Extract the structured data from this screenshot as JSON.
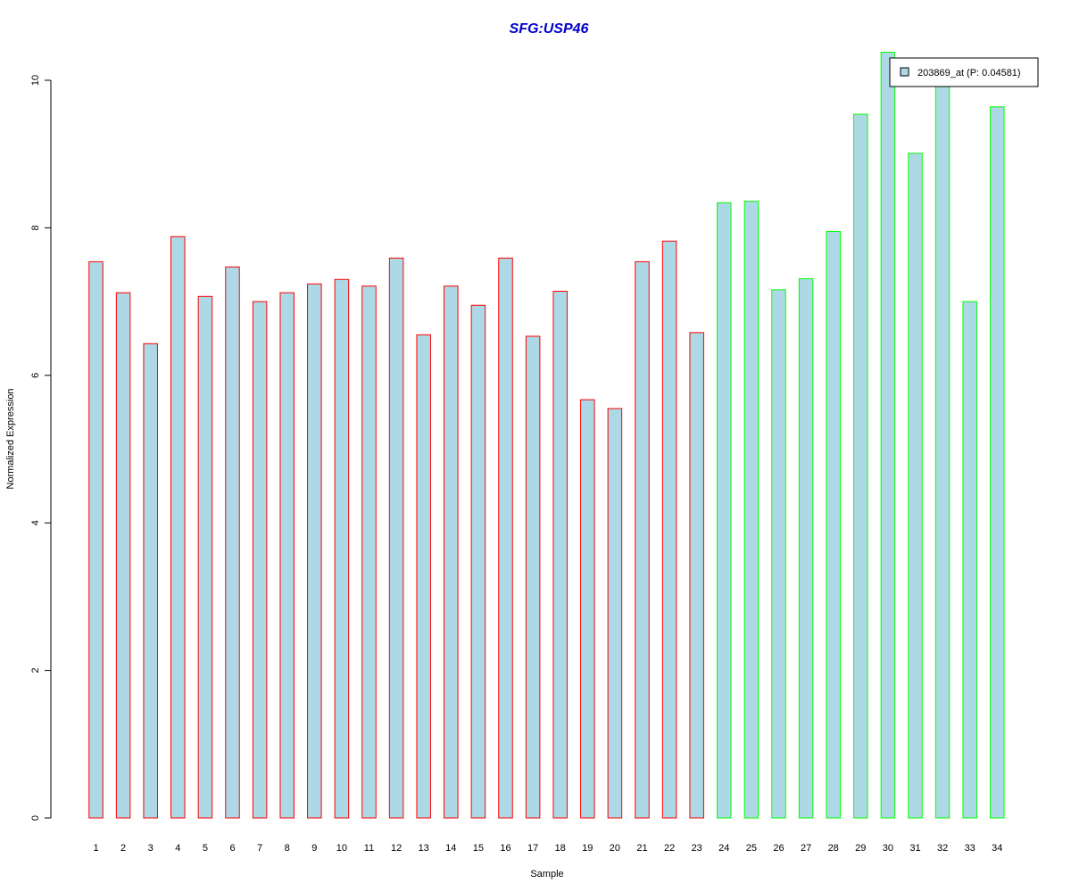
{
  "chart_data": {
    "type": "bar",
    "title": "SFG:USP46",
    "xlabel": "Sample",
    "ylabel": "Normalized Expression",
    "ylim": [
      0,
      10.5
    ],
    "yticks": [
      0,
      2,
      4,
      6,
      8,
      10
    ],
    "categories": [
      "1",
      "2",
      "3",
      "4",
      "5",
      "6",
      "7",
      "8",
      "9",
      "10",
      "11",
      "12",
      "13",
      "14",
      "15",
      "16",
      "17",
      "18",
      "19",
      "20",
      "21",
      "22",
      "23",
      "24",
      "25",
      "26",
      "27",
      "28",
      "29",
      "30",
      "31",
      "32",
      "33",
      "34"
    ],
    "values": [
      7.54,
      7.12,
      6.43,
      7.88,
      7.07,
      7.47,
      7.0,
      7.12,
      7.24,
      7.3,
      7.21,
      7.59,
      6.55,
      7.21,
      6.95,
      7.59,
      6.53,
      7.14,
      5.67,
      5.55,
      7.54,
      7.82,
      6.58,
      8.34,
      8.36,
      7.16,
      7.31,
      7.95,
      9.54,
      10.38,
      9.01,
      9.99,
      7.0,
      9.64
    ],
    "groups": [
      "red",
      "red",
      "red",
      "red",
      "red",
      "red",
      "red",
      "red",
      "red",
      "red",
      "red",
      "red",
      "red",
      "red",
      "red",
      "red",
      "red",
      "red",
      "red",
      "red",
      "red",
      "red",
      "red",
      "green",
      "green",
      "green",
      "green",
      "green",
      "green",
      "green",
      "green",
      "green",
      "green",
      "green"
    ],
    "legend": {
      "label": "203869_at (P: 0.04581)",
      "position": "top-right"
    },
    "colors": {
      "fill": "#add8e6",
      "group_red": "#ff0000",
      "group_green": "#00ff00",
      "title": "#0000cc",
      "axis": "#000000"
    },
    "grid": false
  }
}
